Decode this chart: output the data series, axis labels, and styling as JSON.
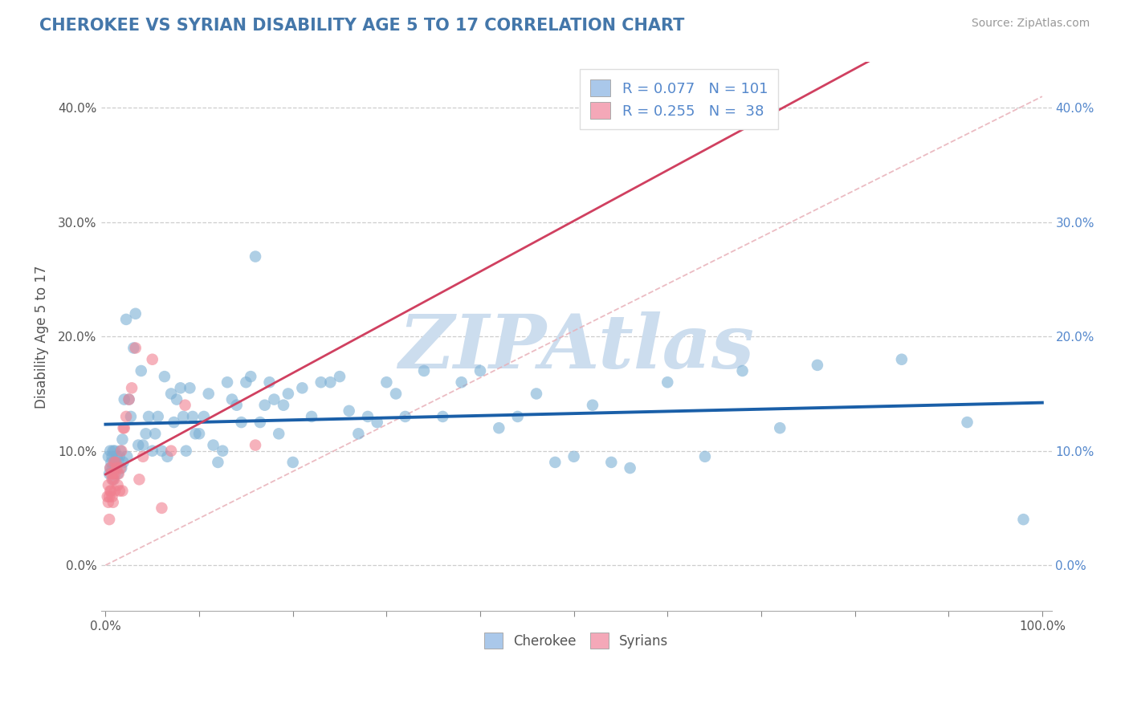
{
  "title": "CHEROKEE VS SYRIAN DISABILITY AGE 5 TO 17 CORRELATION CHART",
  "source": "Source: ZipAtlas.com",
  "ylabel_label": "Disability Age 5 to 17",
  "legend_labels_bottom": [
    "Cherokee",
    "Syrians"
  ],
  "watermark_text": "ZIPAtlas",
  "cherokee_color": "#7bafd4",
  "syrian_color": "#f08090",
  "cherokee_line_color": "#1a5fa8",
  "syrian_line_color": "#d04060",
  "ref_line_color": "#e8b0b8",
  "background_color": "#ffffff",
  "grid_color": "#c8c8c8",
  "title_color": "#4477aa",
  "source_color": "#999999",
  "legend_box_color_cherokee": "#aac8ea",
  "legend_box_color_syrian": "#f4a8b8",
  "right_tick_color": "#5588cc",
  "xlim": [
    -0.005,
    1.01
  ],
  "ylim": [
    -0.04,
    0.44
  ],
  "yticks": [
    0.0,
    0.1,
    0.2,
    0.3,
    0.4
  ],
  "xticks": [
    0.0,
    1.0
  ],
  "cherokee_x": [
    0.003,
    0.004,
    0.005,
    0.005,
    0.006,
    0.007,
    0.007,
    0.008,
    0.008,
    0.009,
    0.01,
    0.01,
    0.011,
    0.012,
    0.013,
    0.014,
    0.015,
    0.016,
    0.017,
    0.018,
    0.019,
    0.02,
    0.022,
    0.023,
    0.025,
    0.027,
    0.03,
    0.032,
    0.035,
    0.038,
    0.04,
    0.043,
    0.046,
    0.05,
    0.053,
    0.056,
    0.06,
    0.063,
    0.066,
    0.07,
    0.073,
    0.076,
    0.08,
    0.083,
    0.086,
    0.09,
    0.093,
    0.096,
    0.1,
    0.105,
    0.11,
    0.115,
    0.12,
    0.125,
    0.13,
    0.135,
    0.14,
    0.145,
    0.15,
    0.155,
    0.16,
    0.165,
    0.17,
    0.175,
    0.18,
    0.185,
    0.19,
    0.195,
    0.2,
    0.21,
    0.22,
    0.23,
    0.24,
    0.25,
    0.26,
    0.27,
    0.28,
    0.29,
    0.3,
    0.31,
    0.32,
    0.34,
    0.36,
    0.38,
    0.4,
    0.42,
    0.44,
    0.46,
    0.48,
    0.5,
    0.52,
    0.54,
    0.56,
    0.6,
    0.64,
    0.68,
    0.72,
    0.76,
    0.85,
    0.92,
    0.98
  ],
  "cherokee_y": [
    0.095,
    0.08,
    0.085,
    0.1,
    0.09,
    0.085,
    0.095,
    0.075,
    0.1,
    0.085,
    0.09,
    0.1,
    0.085,
    0.095,
    0.08,
    0.09,
    0.095,
    0.1,
    0.085,
    0.11,
    0.09,
    0.145,
    0.215,
    0.095,
    0.145,
    0.13,
    0.19,
    0.22,
    0.105,
    0.17,
    0.105,
    0.115,
    0.13,
    0.1,
    0.115,
    0.13,
    0.1,
    0.165,
    0.095,
    0.15,
    0.125,
    0.145,
    0.155,
    0.13,
    0.1,
    0.155,
    0.13,
    0.115,
    0.115,
    0.13,
    0.15,
    0.105,
    0.09,
    0.1,
    0.16,
    0.145,
    0.14,
    0.125,
    0.16,
    0.165,
    0.27,
    0.125,
    0.14,
    0.16,
    0.145,
    0.115,
    0.14,
    0.15,
    0.09,
    0.155,
    0.13,
    0.16,
    0.16,
    0.165,
    0.135,
    0.115,
    0.13,
    0.125,
    0.16,
    0.15,
    0.13,
    0.17,
    0.13,
    0.16,
    0.17,
    0.12,
    0.13,
    0.15,
    0.09,
    0.095,
    0.14,
    0.09,
    0.085,
    0.16,
    0.095,
    0.17,
    0.12,
    0.175,
    0.18,
    0.125,
    0.04
  ],
  "syrian_x": [
    0.002,
    0.003,
    0.003,
    0.004,
    0.004,
    0.005,
    0.005,
    0.006,
    0.006,
    0.007,
    0.007,
    0.008,
    0.008,
    0.009,
    0.009,
    0.01,
    0.01,
    0.011,
    0.012,
    0.013,
    0.014,
    0.015,
    0.016,
    0.017,
    0.018,
    0.019,
    0.02,
    0.022,
    0.025,
    0.028,
    0.032,
    0.036,
    0.04,
    0.05,
    0.06,
    0.07,
    0.085,
    0.16
  ],
  "syrian_y": [
    0.06,
    0.055,
    0.07,
    0.06,
    0.04,
    0.065,
    0.085,
    0.065,
    0.08,
    0.06,
    0.075,
    0.055,
    0.08,
    0.075,
    0.09,
    0.065,
    0.08,
    0.09,
    0.085,
    0.07,
    0.08,
    0.065,
    0.085,
    0.1,
    0.065,
    0.12,
    0.12,
    0.13,
    0.145,
    0.155,
    0.19,
    0.075,
    0.095,
    0.18,
    0.05,
    0.1,
    0.14,
    0.105
  ]
}
